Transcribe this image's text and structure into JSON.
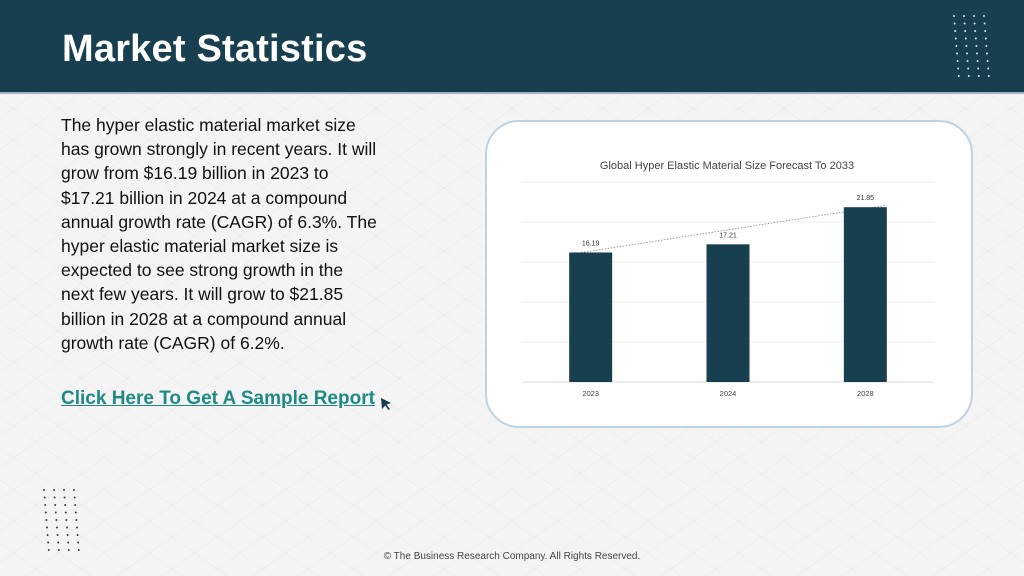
{
  "header": {
    "title": "Market Statistics"
  },
  "body": {
    "paragraph": "The hyper elastic material market size has grown strongly in recent years. It will grow from $16.19 billion in 2023 to $17.21 billion in 2024 at a compound annual growth rate (CAGR) of 6.3%. The hyper elastic material market size is expected to see strong growth in the next few years. It will grow to $21.85 billion in 2028 at a compound annual growth rate (CAGR) of 6.2%.",
    "cta_label": "Click Here To Get A Sample Report"
  },
  "colors": {
    "header_bg": "#173f4f",
    "bar": "#173f4f",
    "link": "#1f8a83",
    "card_border": "#bcd3e3"
  },
  "icons": {
    "cursor": "cursor-arrow-icon",
    "decor": "dot-grid-icon"
  },
  "chart_data": {
    "type": "bar",
    "title": "Global Hyper Elastic Material Size Forecast To 2033",
    "categories": [
      "2023",
      "2024",
      "2028"
    ],
    "values": [
      16.19,
      17.21,
      21.85
    ],
    "data_labels": [
      "16.19",
      "17.21",
      "21.85"
    ],
    "ylim": [
      0,
      25
    ],
    "grid": true,
    "trendline": true,
    "legend": "none"
  },
  "footer": {
    "copyright": "© The Business Research Company. All Rights Reserved."
  }
}
